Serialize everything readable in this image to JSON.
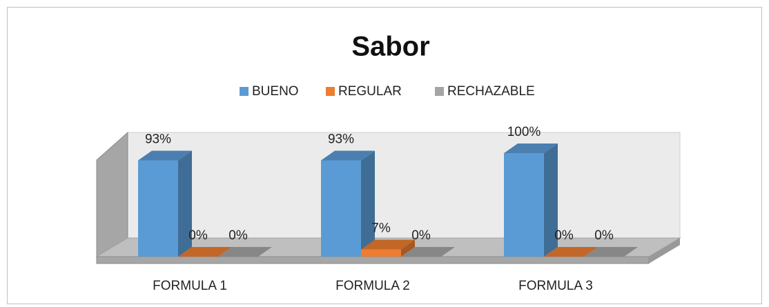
{
  "chart_data": {
    "type": "bar3d",
    "title": "Sabor",
    "categories": [
      "FORMULA 1",
      "FORMULA 2",
      "FORMULA 3"
    ],
    "series": [
      {
        "name": "BUENO",
        "color": "#5b9bd5",
        "values": [
          93,
          93,
          100
        ],
        "value_labels": [
          "93%",
          "93%",
          "100%"
        ]
      },
      {
        "name": "REGULAR",
        "color": "#ed7d31",
        "values": [
          0,
          7,
          0
        ],
        "value_labels": [
          "0%",
          "7%",
          "0%"
        ]
      },
      {
        "name": "RECHAZABLE",
        "color": "#a5a5a5",
        "values": [
          0,
          0,
          0
        ],
        "value_labels": [
          "0%",
          "0%",
          "0%"
        ]
      }
    ],
    "legend": "top"
  }
}
